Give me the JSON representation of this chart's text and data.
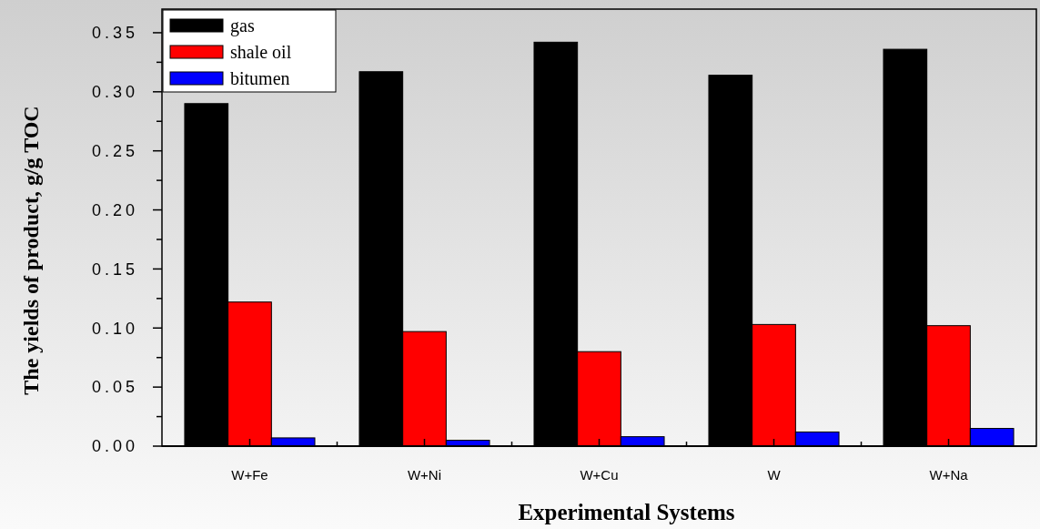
{
  "chart_data": {
    "type": "bar",
    "xlabel": "Experimental Systems",
    "ylabel": "The yields of product, g/g TOC",
    "categories": [
      "W+Fe",
      "W+Ni",
      "W+Cu",
      "W",
      "W+Na"
    ],
    "series": [
      {
        "name": "gas",
        "color": "#000000",
        "values": [
          0.29,
          0.317,
          0.342,
          0.314,
          0.336
        ]
      },
      {
        "name": "shale oil",
        "color": "#ff0000",
        "values": [
          0.122,
          0.097,
          0.08,
          0.103,
          0.102
        ]
      },
      {
        "name": "bitumen",
        "color": "#0000ff",
        "values": [
          0.007,
          0.005,
          0.008,
          0.012,
          0.015
        ]
      }
    ],
    "ylim": [
      0,
      0.37
    ],
    "yticks": [
      {
        "value": 0,
        "label": "0.00"
      },
      {
        "value": 0.025,
        "label": null
      },
      {
        "value": 0.05,
        "label": "0.05"
      },
      {
        "value": 0.075,
        "label": null
      },
      {
        "value": 0.1,
        "label": "0.10"
      },
      {
        "value": 0.125,
        "label": null
      },
      {
        "value": 0.15,
        "label": "0.15"
      },
      {
        "value": 0.175,
        "label": null
      },
      {
        "value": 0.2,
        "label": "0.20"
      },
      {
        "value": 0.225,
        "label": null
      },
      {
        "value": 0.25,
        "label": "0.25"
      },
      {
        "value": 0.275,
        "label": null
      },
      {
        "value": 0.3,
        "label": "0.30"
      },
      {
        "value": 0.325,
        "label": null
      },
      {
        "value": 0.35,
        "label": "0.35"
      }
    ],
    "grid": false,
    "legend": "top left"
  }
}
